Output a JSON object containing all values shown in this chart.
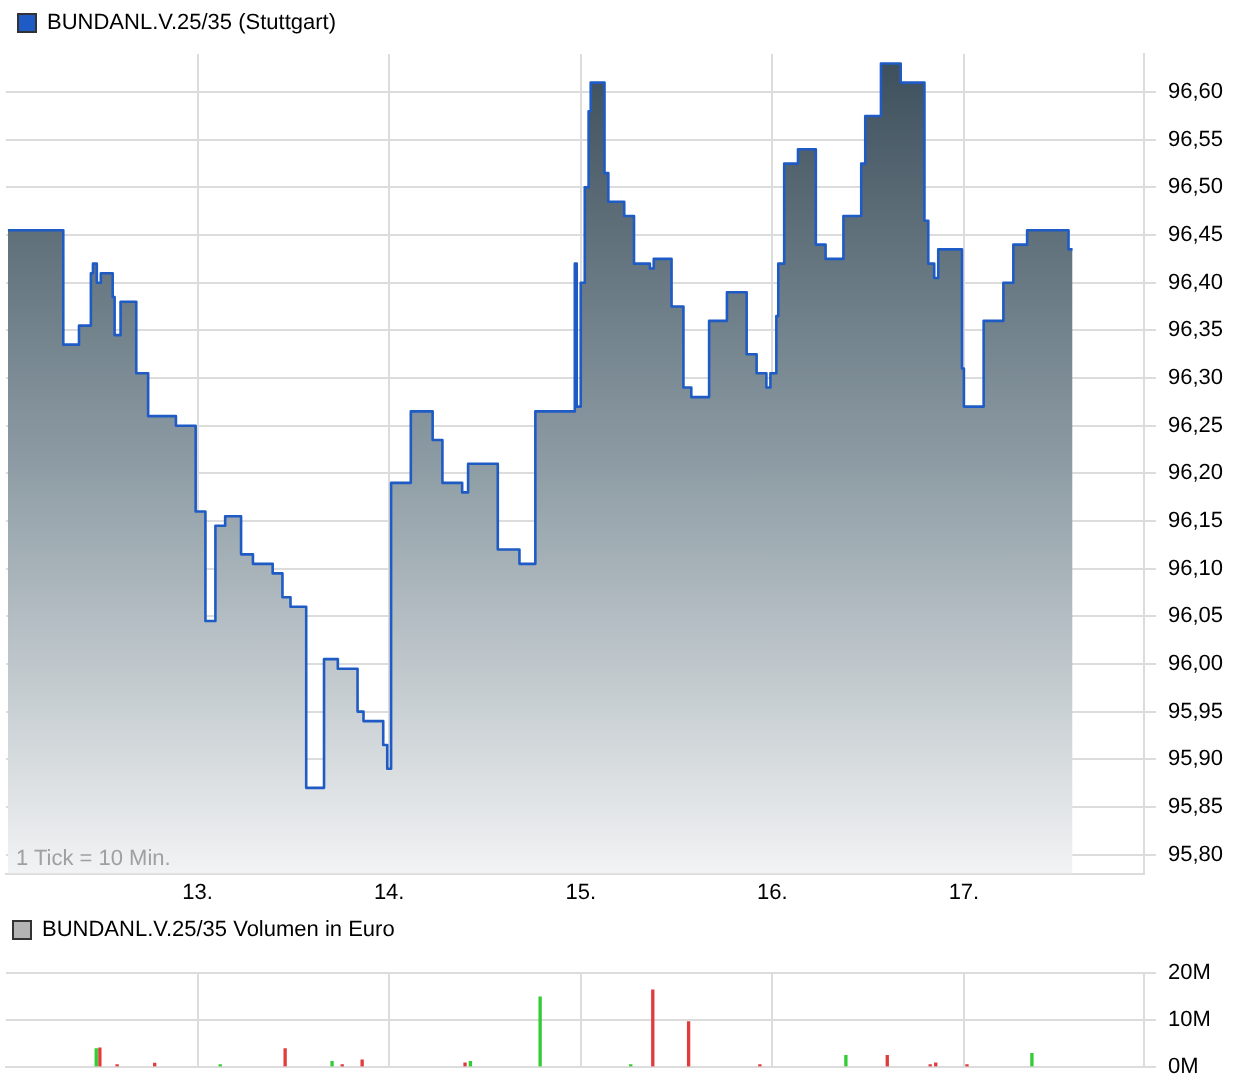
{
  "chart_data": [
    {
      "type": "area",
      "legend": "top left",
      "grid": true,
      "series": [
        {
          "name": "BUNDANL.V.25/35 (Stuttgart)",
          "color": "#1f5bc4",
          "x": [
            12.01,
            12.299,
            12.299,
            12.381,
            12.381,
            12.443,
            12.443,
            12.454,
            12.454,
            12.474,
            12.474,
            12.495,
            12.495,
            12.557,
            12.557,
            12.567,
            12.567,
            12.598,
            12.598,
            12.68,
            12.68,
            12.742,
            12.742,
            12.887,
            12.887,
            12.99,
            12.99,
            13.041,
            13.041,
            13.093,
            13.093,
            13.144,
            13.144,
            13.227,
            13.227,
            13.289,
            13.289,
            13.392,
            13.392,
            13.443,
            13.443,
            13.485,
            13.485,
            13.567,
            13.567,
            13.66,
            13.66,
            13.732,
            13.732,
            13.835,
            13.835,
            13.866,
            13.866,
            13.969,
            13.969,
            13.99,
            13.99,
            14.01,
            14.01,
            14.113,
            14.113,
            14.227,
            14.227,
            14.278,
            14.278,
            14.381,
            14.381,
            14.412,
            14.412,
            14.567,
            14.567,
            14.68,
            14.68,
            14.763,
            14.763,
            14.969,
            14.969,
            14.979,
            14.979,
            15.0,
            15.0,
            15.021,
            15.021,
            15.041,
            15.041,
            15.052,
            15.052,
            15.124,
            15.124,
            15.144,
            15.144,
            15.227,
            15.227,
            15.278,
            15.278,
            15.361,
            15.361,
            15.381,
            15.381,
            15.474,
            15.474,
            15.536,
            15.536,
            15.577,
            15.577,
            15.67,
            15.67,
            15.763,
            15.763,
            15.866,
            15.866,
            15.918,
            15.918,
            15.969,
            15.969,
            15.99,
            15.99,
            16.021,
            16.021,
            16.031,
            16.031,
            16.062,
            16.062,
            16.134,
            16.134,
            16.227,
            16.227,
            16.278,
            16.278,
            16.371,
            16.371,
            16.464,
            16.464,
            16.485,
            16.485,
            16.567,
            16.567,
            16.67,
            16.67,
            16.794,
            16.794,
            16.814,
            16.814,
            16.845,
            16.845,
            16.866,
            16.866,
            16.99,
            16.99,
            17.0,
            17.0,
            17.103,
            17.103,
            17.206,
            17.206,
            17.258,
            17.258,
            17.33,
            17.33,
            17.546,
            17.546,
            17.567
          ],
          "values": [
            96.455,
            96.455,
            96.335,
            96.335,
            96.355,
            96.355,
            96.41,
            96.41,
            96.42,
            96.42,
            96.4,
            96.4,
            96.41,
            96.41,
            96.385,
            96.385,
            96.345,
            96.345,
            96.38,
            96.38,
            96.305,
            96.305,
            96.26,
            96.26,
            96.25,
            96.25,
            96.16,
            96.16,
            96.045,
            96.045,
            96.145,
            96.145,
            96.155,
            96.155,
            96.115,
            96.115,
            96.105,
            96.105,
            96.095,
            96.095,
            96.07,
            96.07,
            96.06,
            96.06,
            95.87,
            95.87,
            96.005,
            96.005,
            95.995,
            95.995,
            95.95,
            95.95,
            95.94,
            95.94,
            95.915,
            95.915,
            95.89,
            95.89,
            96.19,
            96.19,
            96.265,
            96.265,
            96.235,
            96.235,
            96.19,
            96.19,
            96.18,
            96.18,
            96.21,
            96.21,
            96.12,
            96.12,
            96.105,
            96.105,
            96.265,
            96.265,
            96.42,
            96.42,
            96.27,
            96.27,
            96.4,
            96.4,
            96.5,
            96.5,
            96.58,
            96.58,
            96.61,
            96.61,
            96.515,
            96.515,
            96.485,
            96.485,
            96.47,
            96.47,
            96.42,
            96.42,
            96.415,
            96.415,
            96.425,
            96.425,
            96.375,
            96.375,
            96.29,
            96.29,
            96.28,
            96.28,
            96.36,
            96.36,
            96.39,
            96.39,
            96.325,
            96.325,
            96.305,
            96.305,
            96.29,
            96.29,
            96.305,
            96.305,
            96.365,
            96.365,
            96.42,
            96.42,
            96.525,
            96.525,
            96.54,
            96.54,
            96.44,
            96.44,
            96.425,
            96.425,
            96.47,
            96.47,
            96.525,
            96.525,
            96.575,
            96.575,
            96.63,
            96.63,
            96.61,
            96.61,
            96.465,
            96.465,
            96.42,
            96.42,
            96.405,
            96.405,
            96.435,
            96.435,
            96.31,
            96.31,
            96.27,
            96.27,
            96.36,
            96.36,
            96.4,
            96.4,
            96.44,
            96.44,
            96.455,
            96.455,
            96.435,
            96.435
          ]
        }
      ],
      "xlim": [
        12.0,
        17.94
      ],
      "xticks": [
        {
          "value": 13,
          "label": "13."
        },
        {
          "value": 14,
          "label": "14."
        },
        {
          "value": 15,
          "label": "15."
        },
        {
          "value": 16,
          "label": "16."
        },
        {
          "value": 17,
          "label": "17."
        }
      ],
      "ylim": [
        95.78,
        96.64
      ],
      "yticks": [
        {
          "value": 95.8,
          "label": "95,80"
        },
        {
          "value": 95.85,
          "label": "95,85"
        },
        {
          "value": 95.9,
          "label": "95,90"
        },
        {
          "value": 95.95,
          "label": "95,95"
        },
        {
          "value": 96.0,
          "label": "96,00"
        },
        {
          "value": 96.05,
          "label": "96,05"
        },
        {
          "value": 96.1,
          "label": "96,10"
        },
        {
          "value": 96.15,
          "label": "96,15"
        },
        {
          "value": 96.2,
          "label": "96,20"
        },
        {
          "value": 96.25,
          "label": "96,25"
        },
        {
          "value": 96.3,
          "label": "96,30"
        },
        {
          "value": 96.35,
          "label": "96,35"
        },
        {
          "value": 96.4,
          "label": "96,40"
        },
        {
          "value": 96.45,
          "label": "96,45"
        },
        {
          "value": 96.5,
          "label": "96,50"
        },
        {
          "value": 96.55,
          "label": "96,55"
        },
        {
          "value": 96.6,
          "label": "96,60"
        }
      ],
      "annotations": [
        "1 Tick = 10 Min."
      ]
    },
    {
      "type": "bar",
      "title": "BUNDANL.V.25/35 Volumen in Euro",
      "grid": true,
      "tick_labels": "y",
      "series": [
        {
          "x": [
            12.471,
            12.49,
            12.58,
            12.776,
            13.118,
            13.457,
            13.702,
            13.755,
            13.859,
            14.396,
            14.424,
            14.788,
            15.261,
            15.376,
            15.563,
            15.935,
            16.384,
            16.6,
            16.824,
            16.853,
            17.016,
            17.355
          ],
          "values": [
            3800000,
            4000000,
            400000,
            700000,
            400000,
            3800000,
            1100000,
            400000,
            1400000,
            800000,
            1100000,
            14900000,
            400000,
            16400000,
            9600000,
            400000,
            2400000,
            2400000,
            400000,
            800000,
            400000,
            2800000
          ],
          "colors": [
            "#33cc33",
            "#e03c3c",
            "#e03c3c",
            "#e03c3c",
            "#33cc33",
            "#e03c3c",
            "#33cc33",
            "#e03c3c",
            "#e03c3c",
            "#e03c3c",
            "#33cc33",
            "#33cc33",
            "#33cc33",
            "#e03c3c",
            "#e03c3c",
            "#e03c3c",
            "#33cc33",
            "#e03c3c",
            "#e03c3c",
            "#e03c3c",
            "#e03c3c",
            "#33cc33"
          ]
        }
      ],
      "xlim": [
        12.0,
        17.94
      ],
      "xticks": [
        {
          "value": 13,
          "label": null
        },
        {
          "value": 14,
          "label": null
        },
        {
          "value": 15,
          "label": null
        },
        {
          "value": 16,
          "label": null
        },
        {
          "value": 17,
          "label": null
        }
      ],
      "ylim": [
        0,
        20000000
      ],
      "yticks": [
        {
          "value": 0,
          "label": "0M"
        },
        {
          "value": 10000000,
          "label": "10M"
        },
        {
          "value": 20000000,
          "label": "20M"
        }
      ]
    }
  ]
}
